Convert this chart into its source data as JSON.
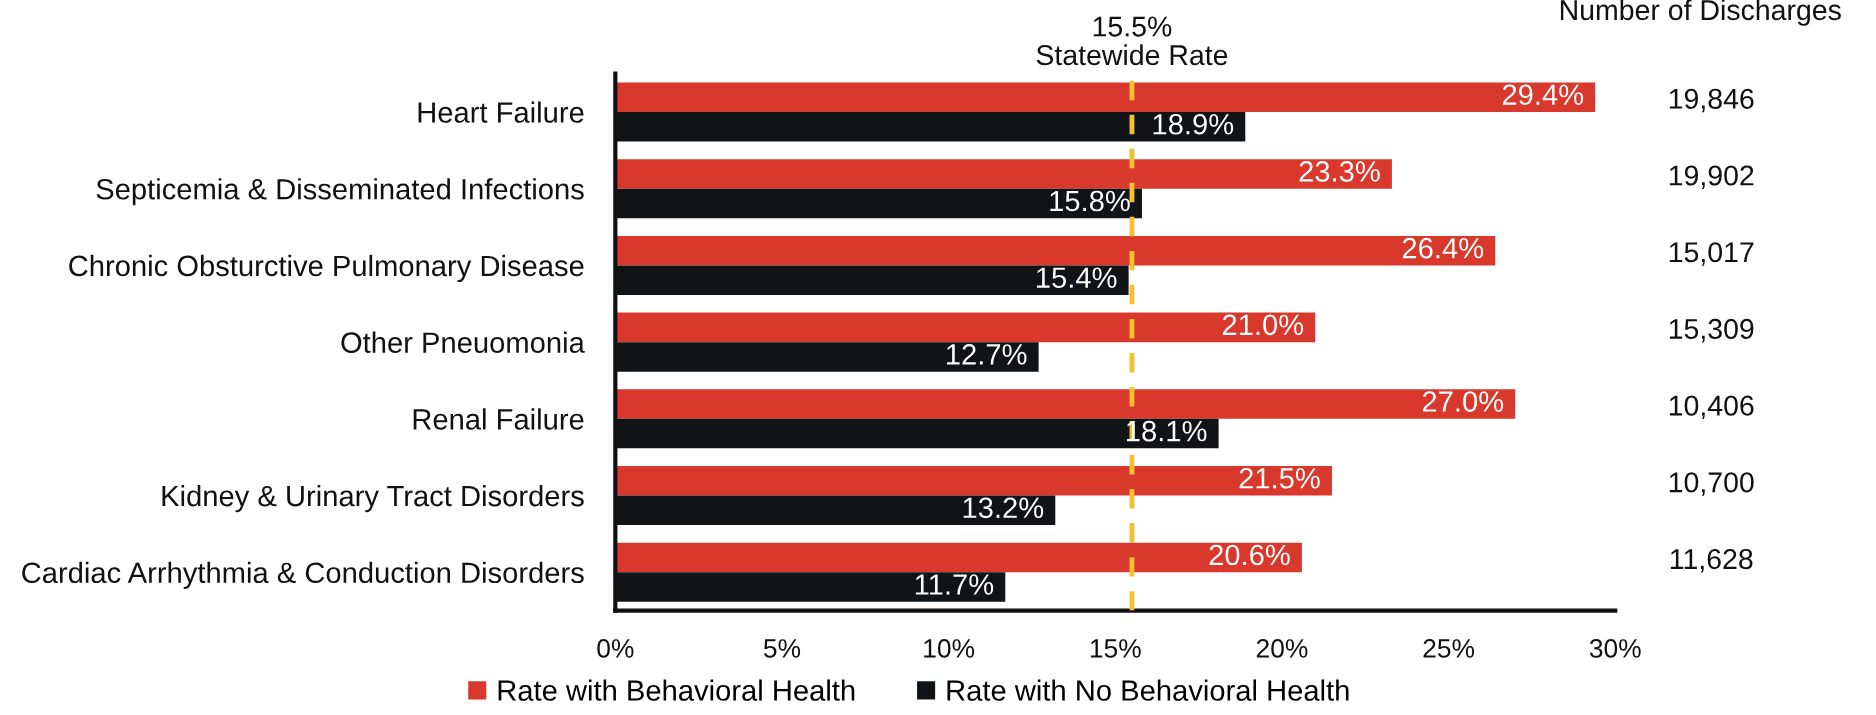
{
  "chart_data": {
    "type": "bar",
    "orientation": "horizontal",
    "categories": [
      "Heart Failure",
      "Septicemia & Disseminated Infections",
      "Chronic Obsturctive Pulmonary Disease",
      "Other Pneuomonia",
      "Renal Failure",
      "Kidney & Urinary Tract Disorders",
      "Cardiac Arrhythmia & Conduction Disorders"
    ],
    "series": [
      {
        "name": "Rate with Behavioral Health",
        "color": "#d9382c",
        "values": [
          29.4,
          23.3,
          26.4,
          21.0,
          27.0,
          21.5,
          20.6
        ],
        "value_labels": [
          "29.4%",
          "23.3%",
          "26.4%",
          "21.0%",
          "27.0%",
          "21.5%",
          "20.6%"
        ]
      },
      {
        "name": "Rate with No Behavioral Health",
        "color": "#111417",
        "values": [
          18.9,
          15.8,
          15.4,
          12.7,
          18.1,
          13.2,
          11.7
        ],
        "value_labels": [
          "18.9%",
          "15.8%",
          "15.4%",
          "12.7%",
          "18.1%",
          "13.2%",
          "11.7%"
        ]
      }
    ],
    "xlim": [
      0,
      30
    ],
    "xticks": [
      {
        "value": 0,
        "label": "0%"
      },
      {
        "value": 5,
        "label": "5%"
      },
      {
        "value": 10,
        "label": "10%"
      },
      {
        "value": 15,
        "label": "15%"
      },
      {
        "value": 20,
        "label": "20%"
      },
      {
        "value": 25,
        "label": "25%"
      },
      {
        "value": 30,
        "label": "30%"
      }
    ],
    "ref_lines": [
      {
        "axis": "x",
        "value": 15.5,
        "label": "15.5%\nStatewide Rate",
        "color": "#f5c02f",
        "line_style": "dashed"
      }
    ],
    "annotations": [
      "Number of Discharges",
      "19,846",
      "19,902",
      "15,017",
      "15,309",
      "10,406",
      "10,700",
      "11,628"
    ],
    "legend": "bottom"
  }
}
